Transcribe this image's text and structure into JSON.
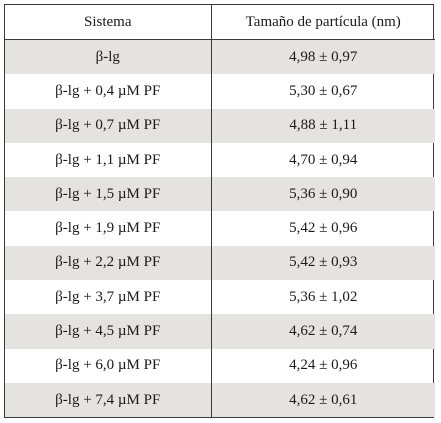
{
  "table": {
    "headers": [
      "Sistema",
      "Tamaño de partícula (nm)"
    ],
    "rows": [
      [
        "β-lg",
        "4,98 ± 0,97"
      ],
      [
        "β-lg + 0,4 µM PF",
        "5,30 ± 0,67"
      ],
      [
        "β-lg + 0,7 µM PF",
        "4,88 ± 1,11"
      ],
      [
        "β-lg + 1,1 µM PF",
        "4,70 ± 0,94"
      ],
      [
        "β-lg + 1,5 µM PF",
        "5,36 ± 0,90"
      ],
      [
        "β-lg + 1,9 µM PF",
        "5,42 ± 0,96"
      ],
      [
        "β-lg + 2,2 µM PF",
        "5,42 ± 0,93"
      ],
      [
        "β-lg + 3,7 µM PF",
        "5,36 ± 1,02"
      ],
      [
        "β-lg + 4,5 µM PF",
        "4,62 ± 0,74"
      ],
      [
        "β-lg + 6,0 µM PF",
        "4,24 ± 0,96"
      ],
      [
        "β-lg + 7,4 µM PF",
        "4,62 ± 0,61"
      ]
    ]
  },
  "colors": {
    "shaded_row": "#e5e3df",
    "border": "#3a3a3a",
    "text": "#1a1a1a"
  }
}
